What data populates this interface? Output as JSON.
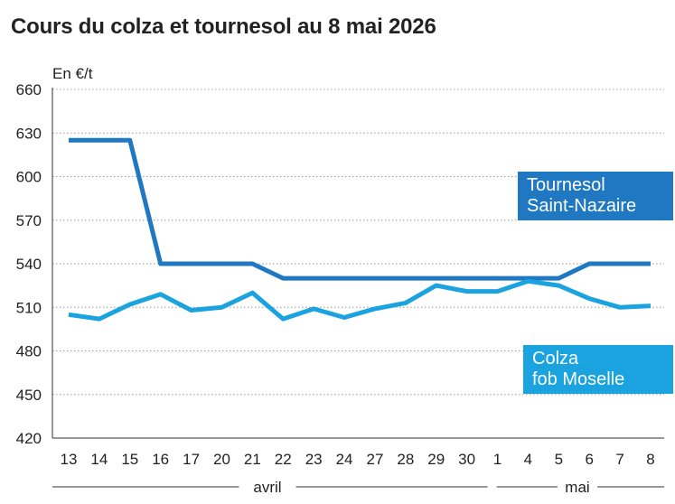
{
  "chart_data": {
    "type": "line",
    "title": "Cours du colza et tournesol au 8 mai 2026",
    "ylabel": "En €/t",
    "ylim": [
      420,
      660
    ],
    "yticks": [
      420,
      450,
      480,
      510,
      540,
      570,
      600,
      630,
      660
    ],
    "categories": [
      "13",
      "14",
      "15",
      "16",
      "17",
      "20",
      "21",
      "22",
      "23",
      "24",
      "27",
      "28",
      "29",
      "30",
      "1",
      "4",
      "5",
      "6",
      "7",
      "8"
    ],
    "month_groups": [
      {
        "label": "avril",
        "from": 0,
        "to": 13
      },
      {
        "label": "mai",
        "from": 14,
        "to": 19
      }
    ],
    "grid": true,
    "series": [
      {
        "name": "Tournesol Saint-Nazaire",
        "name_lines": [
          "Tournesol",
          "Saint-Nazaire"
        ],
        "color": "#1f78c1",
        "values": [
          625,
          625,
          625,
          540,
          540,
          540,
          540,
          530,
          530,
          530,
          530,
          530,
          530,
          530,
          530,
          530,
          530,
          540,
          540,
          540
        ]
      },
      {
        "name": "Colza fob Moselle",
        "name_lines": [
          "Colza",
          "fob Moselle"
        ],
        "color": "#1aa3de",
        "values": [
          505,
          502,
          512,
          519,
          508,
          510,
          520,
          502,
          509,
          503,
          509,
          513,
          525,
          521,
          521,
          528,
          525,
          516,
          510,
          511
        ]
      }
    ]
  }
}
